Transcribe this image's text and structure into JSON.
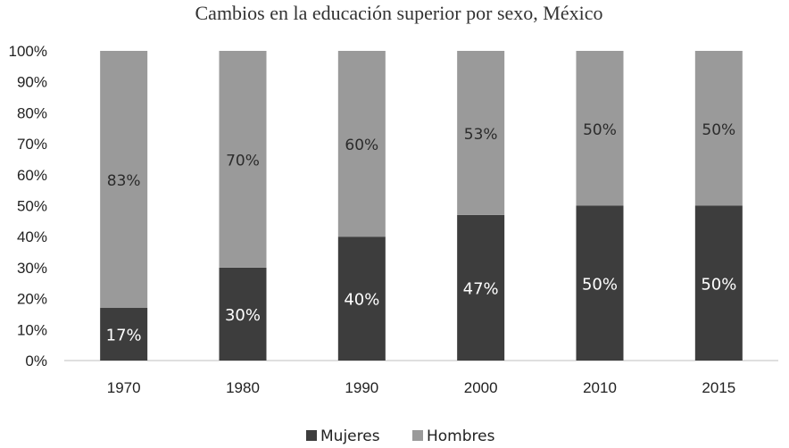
{
  "chart_data": {
    "type": "bar",
    "stacked": true,
    "title": "Cambios en la educación superior por sexo, México",
    "categories": [
      "1970",
      "1980",
      "1990",
      "2000",
      "2010",
      "2015"
    ],
    "series": [
      {
        "name": "Mujeres",
        "color": "#3d3d3d",
        "values": [
          17,
          30,
          40,
          47,
          50,
          50
        ],
        "labels": [
          "17%",
          "30%",
          "40%",
          "47%",
          "50%",
          "50%"
        ]
      },
      {
        "name": "Hombres",
        "color": "#9a9a9a",
        "values": [
          83,
          70,
          60,
          53,
          50,
          50
        ],
        "labels": [
          "83%",
          "70%",
          "60%",
          "53%",
          "50%",
          "50%"
        ]
      }
    ],
    "yticks": [
      "0%",
      "10%",
      "20%",
      "30%",
      "40%",
      "50%",
      "60%",
      "70%",
      "80%",
      "90%",
      "100%"
    ],
    "ylim": [
      0,
      100
    ],
    "grid": false,
    "legend": "bottom-center"
  }
}
